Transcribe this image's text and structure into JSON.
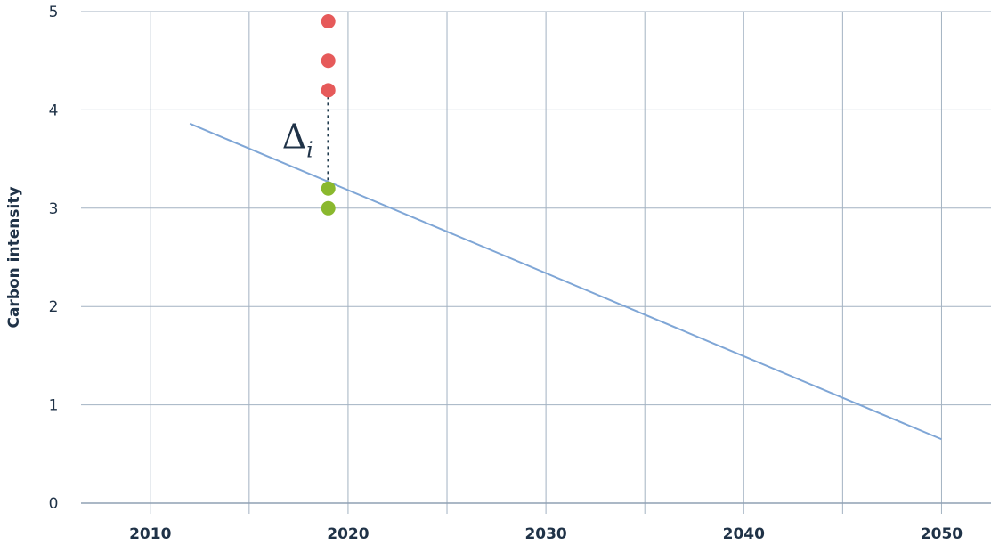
{
  "chart_data": {
    "type": "scatter",
    "title": "",
    "xlabel": "",
    "ylabel": "Carbon intensity",
    "xlim": [
      2006.5,
      2052.5
    ],
    "ylim": [
      0,
      5
    ],
    "x_ticks": [
      2010,
      2020,
      2030,
      2040,
      2050
    ],
    "y_ticks": [
      0,
      1,
      2,
      3,
      4,
      5
    ],
    "grid": true,
    "series": [
      {
        "color": "#e65a5a",
        "points": [
          [
            2019,
            4.9
          ],
          [
            2019,
            4.5
          ],
          [
            2019,
            4.2
          ]
        ]
      },
      {
        "color": "#8ab82e",
        "points": [
          [
            2019,
            3.2
          ],
          [
            2019,
            3.0
          ]
        ]
      }
    ],
    "trend_line": {
      "color": "#7fa6d6",
      "x": [
        2012,
        2050
      ],
      "y": [
        3.86,
        0.65
      ]
    },
    "annotation": {
      "symbol": "Δ",
      "subscript": "i",
      "x": 2019,
      "y_from": 4.2,
      "y_to": 3.2,
      "color": "#1f3a4d"
    }
  }
}
